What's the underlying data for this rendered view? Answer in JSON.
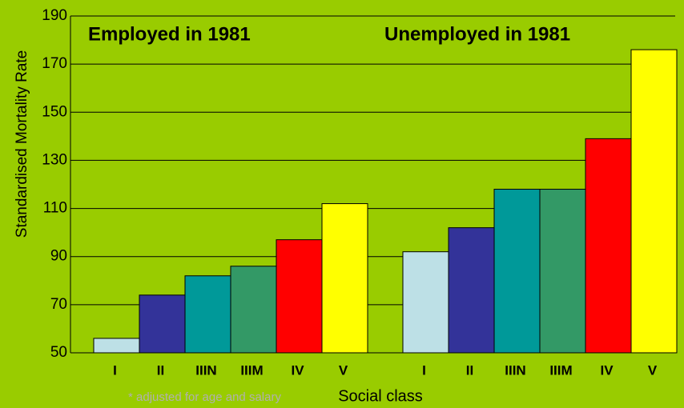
{
  "chart_data": {
    "type": "bar",
    "annotations": [
      "Employed in 1981",
      "Unemployed in 1981"
    ],
    "ylabel": "Standardised Mortality Rate",
    "xlabel": "Social class",
    "footnote": "* adjusted for age and salary",
    "categories": [
      "I",
      "II",
      "IIIN",
      "IIIM",
      "IV",
      "V",
      null,
      "I",
      "II",
      "IIIN",
      "IIIM",
      "IV",
      "V"
    ],
    "values": [
      56,
      74,
      82,
      86,
      97,
      112,
      null,
      92,
      102,
      118,
      118,
      139,
      176
    ],
    "colors": [
      "#bde0e6",
      "#333399",
      "#009999",
      "#339966",
      "#ff0000",
      "#ffff00",
      null,
      "#bde0e6",
      "#333399",
      "#009999",
      "#339966",
      "#ff0000",
      "#ffff00"
    ],
    "ylim": [
      50,
      190
    ],
    "yticks": [
      50,
      70,
      90,
      110,
      130,
      150,
      170,
      190
    ],
    "grid": true
  }
}
